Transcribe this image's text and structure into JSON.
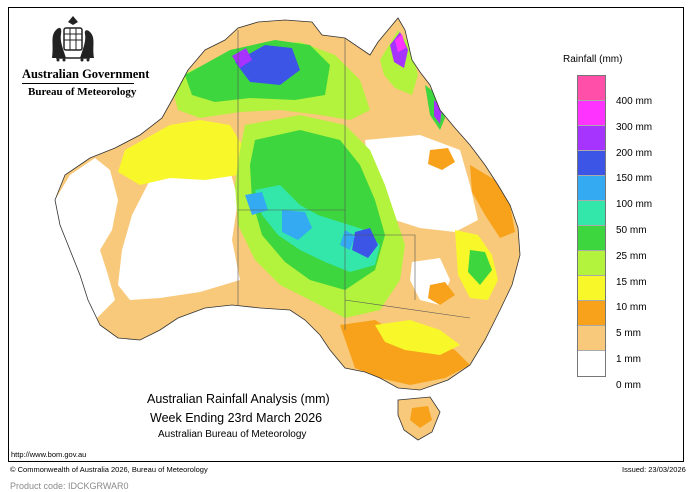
{
  "header": {
    "agency": "Australian Government",
    "bureau": "Bureau of Meteorology"
  },
  "map": {
    "title_line1": "Australian Rainfall Analysis (mm)",
    "title_line2": "Week Ending 23rd March 2026",
    "title_line3": "Australian Bureau of Meteorology"
  },
  "legend": {
    "title": "Rainfall (mm)",
    "items": [
      {
        "label": "400 mm",
        "color": "#ff4fa8"
      },
      {
        "label": "300 mm",
        "color": "#ff33ff"
      },
      {
        "label": "200 mm",
        "color": "#a733ff"
      },
      {
        "label": "150 mm",
        "color": "#3d55e6"
      },
      {
        "label": "100 mm",
        "color": "#33aaf2"
      },
      {
        "label": "50 mm",
        "color": "#33e6aa"
      },
      {
        "label": "25 mm",
        "color": "#3ed63e"
      },
      {
        "label": "15 mm",
        "color": "#b3f23d"
      },
      {
        "label": "10 mm",
        "color": "#f7f72a"
      },
      {
        "label": "5 mm",
        "color": "#f7a21a"
      },
      {
        "label": "1 mm",
        "color": "#f9c97b"
      },
      {
        "label": "0 mm",
        "color": "#ffffff"
      }
    ]
  },
  "footer": {
    "url": "http://www.bom.gov.au",
    "copyright": "© Commonwealth of Australia 2026, Bureau of Meteorology",
    "issued": "Issued: 23/03/2026",
    "product_code": "Product code: IDCKGRWAR0"
  }
}
